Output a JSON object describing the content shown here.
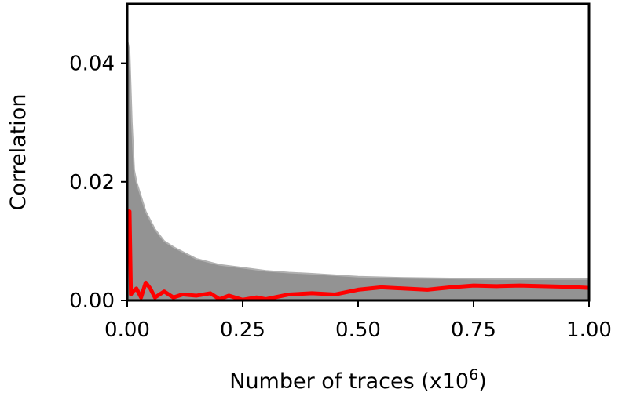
{
  "chart_data": {
    "type": "line",
    "title": "",
    "xlabel": "Number of traces (x10",
    "xlabel_superscript": "6",
    "xlabel_suffix": ")",
    "ylabel": "Correlation",
    "xlim": [
      0,
      1.0
    ],
    "ylim": [
      0,
      0.05
    ],
    "x_ticks": [
      0,
      0.25,
      0.5,
      0.75,
      1.0
    ],
    "x_tick_labels": [
      "0.00",
      "0.25",
      "0.50",
      "0.75",
      "1.00"
    ],
    "y_ticks": [
      0,
      0.02,
      0.04
    ],
    "y_tick_labels": [
      "0.00",
      "0.02",
      "0.04"
    ],
    "grid": false,
    "legend": "none",
    "colors": {
      "highlight": "#ff0000",
      "band": "#808080"
    },
    "series": [
      {
        "role": "highlighted",
        "x": [
          0.0,
          0.005,
          0.008,
          0.012,
          0.02,
          0.03,
          0.04,
          0.05,
          0.06,
          0.07,
          0.08,
          0.1,
          0.12,
          0.15,
          0.18,
          0.2,
          0.22,
          0.25,
          0.28,
          0.3,
          0.35,
          0.4,
          0.45,
          0.5,
          0.55,
          0.6,
          0.65,
          0.7,
          0.75,
          0.8,
          0.85,
          0.9,
          0.95,
          1.0
        ],
        "y": [
          0.015,
          0.015,
          0.001,
          0.0015,
          0.002,
          0.0005,
          0.003,
          0.002,
          0.0005,
          0.001,
          0.0015,
          0.0005,
          0.001,
          0.0008,
          0.0012,
          0.0002,
          0.0008,
          0.0001,
          0.0005,
          0.0002,
          0.001,
          0.0012,
          0.001,
          0.0018,
          0.0022,
          0.002,
          0.0018,
          0.0022,
          0.0025,
          0.0024,
          0.0025,
          0.0024,
          0.0023,
          0.0021
        ]
      },
      {
        "role": "background-upper-envelope",
        "x": [
          0.0,
          0.005,
          0.01,
          0.015,
          0.02,
          0.04,
          0.06,
          0.08,
          0.1,
          0.15,
          0.2,
          0.25,
          0.3,
          0.35,
          0.4,
          0.5,
          0.6,
          0.7,
          0.8,
          0.9,
          1.0
        ],
        "y": [
          0.044,
          0.042,
          0.03,
          0.022,
          0.02,
          0.015,
          0.012,
          0.01,
          0.009,
          0.007,
          0.006,
          0.0055,
          0.005,
          0.0047,
          0.0045,
          0.004,
          0.0038,
          0.0037,
          0.0036,
          0.0036,
          0.0036
        ]
      }
    ]
  }
}
